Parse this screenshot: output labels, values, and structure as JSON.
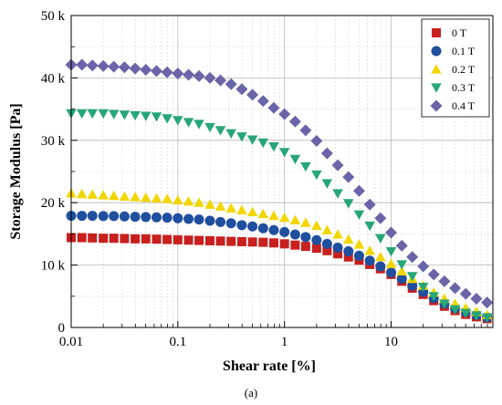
{
  "chart_data": {
    "type": "scatter",
    "xscale": "log",
    "xlim": [
      0.01,
      90
    ],
    "ylim": [
      0,
      50000
    ],
    "x_ticks": [
      0.01,
      0.1,
      1,
      10
    ],
    "x_tick_labels": [
      "0.01",
      "0.1",
      "1",
      "10"
    ],
    "y_ticks": [
      0,
      10000,
      20000,
      30000,
      40000,
      50000
    ],
    "y_tick_labels": [
      "0",
      "10 k",
      "20 k",
      "30 k",
      "40 k",
      "50 k"
    ],
    "xlabel": "Shear rate [%]",
    "ylabel": "Storage Modulus [Pa]",
    "grid": true,
    "legend_position": "top-right",
    "x": [
      0.01,
      0.0126,
      0.0158,
      0.02,
      0.0251,
      0.0316,
      0.0398,
      0.0501,
      0.0631,
      0.0794,
      0.1,
      0.126,
      0.158,
      0.2,
      0.251,
      0.316,
      0.398,
      0.501,
      0.631,
      0.794,
      1,
      1.26,
      1.58,
      2,
      2.51,
      3.16,
      3.98,
      5.01,
      6.31,
      7.94,
      10,
      12.6,
      15.8,
      20,
      25.1,
      31.6,
      39.8,
      50.1,
      63.1,
      79.4
    ],
    "series": [
      {
        "name": "0  T",
        "color": "#c8201e",
        "marker": "square",
        "values": [
          14400,
          14400,
          14350,
          14300,
          14300,
          14250,
          14200,
          14200,
          14150,
          14100,
          14050,
          14000,
          13950,
          13900,
          13850,
          13800,
          13750,
          13700,
          13650,
          13550,
          13400,
          13200,
          13000,
          12700,
          12300,
          11800,
          11300,
          10800,
          10100,
          9400,
          8500,
          7400,
          6300,
          5300,
          4300,
          3400,
          2700,
          2100,
          1700,
          1400
        ]
      },
      {
        "name": "0.1 T",
        "color": "#1f4f9e",
        "marker": "circle",
        "values": [
          17900,
          17900,
          17900,
          17850,
          17850,
          17800,
          17750,
          17700,
          17650,
          17600,
          17500,
          17400,
          17300,
          17100,
          16900,
          16700,
          16400,
          16200,
          15900,
          15600,
          15300,
          14900,
          14500,
          14000,
          13400,
          12800,
          12200,
          11500,
          10700,
          9800,
          8800,
          7800,
          6700,
          5700,
          4700,
          3800,
          3100,
          2500,
          2000,
          1600
        ]
      },
      {
        "name": "0.2 T",
        "color": "#f2d600",
        "marker": "triangle-up",
        "values": [
          21500,
          21400,
          21300,
          21200,
          21100,
          21000,
          20900,
          20800,
          20700,
          20600,
          20400,
          20200,
          20000,
          19700,
          19400,
          19100,
          18800,
          18500,
          18200,
          17900,
          17600,
          17200,
          16800,
          16300,
          15600,
          14900,
          14100,
          13300,
          12300,
          11300,
          10200,
          9000,
          7800,
          6700,
          5600,
          4600,
          3800,
          3100,
          2500,
          2000
        ]
      },
      {
        "name": "0.3 T",
        "color": "#27a678",
        "marker": "triangle-down",
        "values": [
          34300,
          34300,
          34300,
          34300,
          34200,
          34100,
          34000,
          33900,
          33800,
          33500,
          33200,
          32900,
          32600,
          32100,
          31600,
          31100,
          30600,
          30100,
          29600,
          29000,
          28100,
          27000,
          25800,
          24500,
          23100,
          21500,
          19900,
          18100,
          16300,
          14300,
          12200,
          10100,
          8200,
          6500,
          5000,
          3800,
          2900,
          2300,
          1900,
          1600
        ]
      },
      {
        "name": "0.4 T",
        "color": "#6a64a8",
        "marker": "diamond",
        "values": [
          42100,
          42100,
          42000,
          41900,
          41800,
          41700,
          41500,
          41300,
          41100,
          40900,
          40700,
          40500,
          40300,
          40000,
          39600,
          39000,
          38200,
          37300,
          36300,
          35200,
          34200,
          33000,
          31600,
          29900,
          27900,
          26000,
          24100,
          21900,
          19700,
          17500,
          15200,
          13100,
          11300,
          9800,
          8500,
          7400,
          6300,
          5400,
          4600,
          4000
        ]
      }
    ],
    "caption": "(a)"
  }
}
